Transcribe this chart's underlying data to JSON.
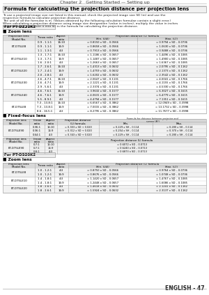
{
  "page_header": "Chapter 2   Getting Started — Setting up",
  "section_title": "Formula for calculating the projection distance per projection lens",
  "body_text": [
    "To use a projected image size not listed in this manual, check the projected image size SD (m) and use the",
    "respective formula to calculate projection distance.",
    "The unit of all the formulae is m. (Values obtained by the following calculation formulae contain a slight error.)",
    "When calculating a projection distance using image size designation (value in inches), multiply the value in inches",
    "by 0.0254 and substitute it into SD in the formula for calculating the projection distance."
  ],
  "pt_dz21k2_label": "For PT-DZ21K2",
  "zoom_lens_label": "■ Zoom lens",
  "zoom_rows": [
    [
      "ET-D75LE8",
      "0.9 - 1.1:1",
      "16:10",
      "= 0.8150 x SD – 0.0566",
      "= 0.9794 x SD – 0.0736"
    ],
    [
      "",
      "0.9 - 1.1:1",
      "16:9",
      "= 0.8658 x SD – 0.0566",
      "= 1.0630 x SD – 0.0736"
    ],
    [
      "",
      "1.1 - 1.3:1",
      "4:3",
      "= 0.7913 x SD – 0.0566",
      "= 0.9488 x SD – 0.0736"
    ],
    [
      "ET-D75LE10",
      "1.3 - 1.7:1",
      "16:10",
      "= 1.1186 x SD – 0.0657",
      "= 1.4496 x SD – 0.1085"
    ],
    [
      "",
      "1.3 - 1.7:1",
      "16:9",
      "= 1.1487 x SD – 0.0657",
      "= 1.4900 x SD – 0.1085"
    ],
    [
      "",
      "1.6 - 2.0:1",
      "4:3",
      "= 1.2663 x SD – 0.0657",
      "= 1.6367 x SD – 0.1085"
    ],
    [
      "ET-D75LE20",
      "1.7 - 2.6:1",
      "16:10",
      "= 1.4313 x SD – 0.0632",
      "= 2.0795 x SD – 0.1162"
    ],
    [
      "",
      "1.7 - 2.4:1",
      "16:9",
      "= 1.4759 x SD – 0.0632",
      "= 2.1373 x SD – 0.1162"
    ],
    [
      "",
      "2.0 - 2.8:1",
      "4:3",
      "= 1.6202 x SD – 0.0632",
      "= 2.3542 x SD – 0.1162"
    ],
    [
      "ET-D75LE30",
      "2.6 - 4.7:1",
      "16:10",
      "= 2.0647 x SD – 0.1131",
      "= 4.0041 x SD – 0.1766"
    ],
    [
      "",
      "2.6 - 4.7:1",
      "16:9",
      "= 2.1221 x SD – 0.1131",
      "= 4.1155 x SD – 0.1766"
    ],
    [
      "",
      "2.9 - 5.6:1",
      "4:3",
      "= 2.3374 x SD – 0.1131",
      "= 4.5330 x SD – 0.1766"
    ],
    [
      "ET-D75LE40",
      "4.6 - 7.6:1",
      "16:10",
      "= 3.9632 x SD – 0.1577",
      "= 6.3027 x SD – 0.1615"
    ],
    [
      "",
      "4.6 - 7.6:1",
      "16:9",
      "= 4.0631 x SD – 0.1577",
      "= 6.4779 x SD – 0.1615"
    ],
    [
      "",
      "5.5 - 8.9:1",
      "4:3",
      "= 4.4794 x SD – 0.1577",
      "= 7.1351 x SD – 0.1615"
    ],
    [
      "ET-D75LE8",
      "7.3 - 13.8:1",
      "16:10",
      "= 6.6567 x SD – 0.3862",
      "= 12.0949 x SD – 0.3998"
    ],
    [
      "",
      "7.3 - 13.8:1",
      "16:9",
      "= 7.0015 x SD – 0.3862",
      "= 13.1732 x SD – 0.3998"
    ],
    [
      "",
      "8.6 - 16.5:1",
      "4:3",
      "= 8.2795 x SD – 0.3862",
      "= 11.7677 x SD – 0.3998"
    ]
  ],
  "fixed_lens_label": "■ Fixed-focus lens",
  "fixed_rows1": [
    [
      "ET-D75LE90",
      "0.36:1",
      "16:10",
      "= 0.303 x SD + 0.020",
      "= 0.229 x SH – 0.114",
      "= 0.280 x SH – 0.114"
    ],
    [
      "",
      "0.36:1",
      "16:9",
      "= 0.312 x SD + 0.020",
      "= 0.254 x SH – 0.114",
      "= 0.370 x SH – 0.114"
    ],
    [
      "",
      "0.64:1",
      "4:3",
      "= 0.343 x SD + 0.020",
      "= 0.229 x SH – 0.114",
      "= 0.280 x SH – 0.114"
    ]
  ],
  "fixed_rows2": [
    [
      "ET-D75LE90",
      "0.7:1",
      "16:10",
      "= 0.6072 x SD – 0.0713"
    ],
    [
      "",
      "0.7:1",
      "16:9",
      "= 0.6240 x SD – 0.0713"
    ],
    [
      "",
      "0.8:1",
      "4:3",
      "= 0.6873 x SD – 0.0713"
    ]
  ],
  "pt_ds20k2_label": "For PT-DS20K2",
  "zoom_lens_label2": "■ Zoom lens",
  "zoom2_rows": [
    [
      "ET-D75LE8",
      "1.0 - 1.2:1",
      "4:3",
      "= 0.8750 x SD – 0.0566",
      "= 0.9764 x SD – 0.0736"
    ],
    [
      "",
      "1.0 - 1.2:1",
      "16:9",
      "= 0.8676 x SD – 0.0566",
      "= 1.0748 x SD – 0.0736"
    ],
    [
      "ET-D75LE10",
      "1.4 - 1.8:1",
      "4:3",
      "= 1.1420 x SD – 0.0657",
      "= 1.4767 x SD – 0.1085"
    ],
    [
      "",
      "1.4 - 1.8:1",
      "16:9",
      "= 1.2448 x SD – 0.0657",
      "= 1.6086 x SD – 0.1085"
    ],
    [
      "ET-D75LE20",
      "1.8 - 2.6:1",
      "4:3",
      "= 1.4618 x SD – 0.0632",
      "= 2.1241 x SD – 0.1162"
    ],
    [
      "",
      "1.8 - 2.6:1",
      "16:9",
      "= 1.5924 x SD – 0.0632",
      "= 2.3137 x SD – 0.1162"
    ]
  ],
  "footer": "ENGLISH - 47",
  "bg_color": "#ffffff",
  "grid_color": "#aaaaaa",
  "header_bg": "#d8d8d8",
  "alt_row_bg": "#f2f2f2"
}
